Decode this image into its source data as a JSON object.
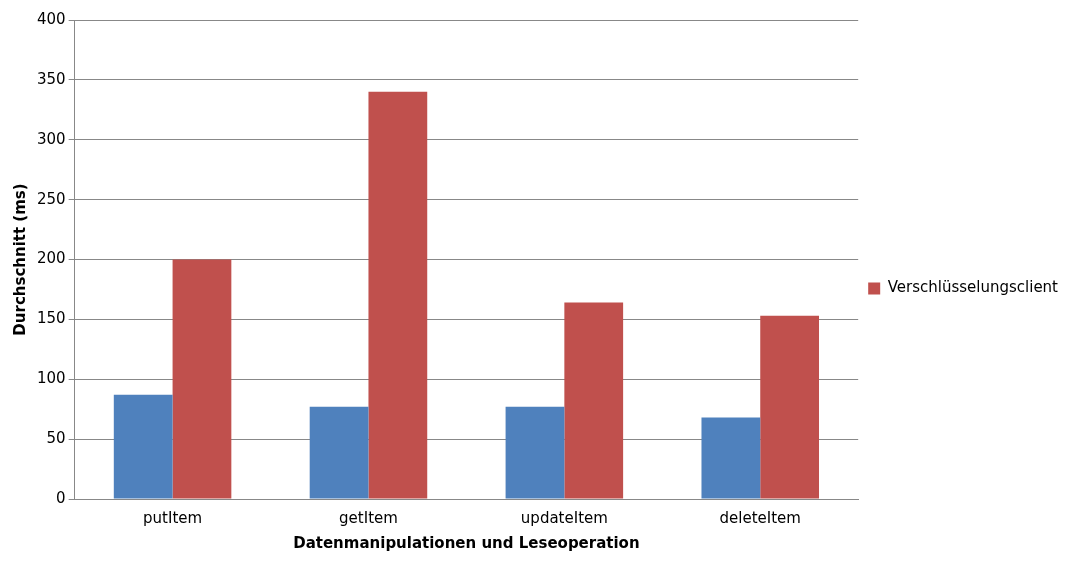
{
  "chart_data": {
    "type": "bar",
    "xlabel": "Datenmanipulationen und Leseoperation",
    "ylabel": "Durchschnitt (ms)",
    "categories": [
      "putItem",
      "getItem",
      "updateItem",
      "deleteItem"
    ],
    "series": [
      {
        "color": "#4f81bd",
        "values": [
          87,
          77,
          77,
          68
        ]
      },
      {
        "name": "Verschlüsselungsclient",
        "color": "#c0504d",
        "values": [
          200,
          340,
          164,
          153
        ]
      }
    ],
    "ylim": [
      0,
      400
    ],
    "yticks": [
      0,
      50,
      100,
      150,
      200,
      250,
      300,
      350,
      400
    ],
    "grid": "y",
    "legend": "right"
  }
}
